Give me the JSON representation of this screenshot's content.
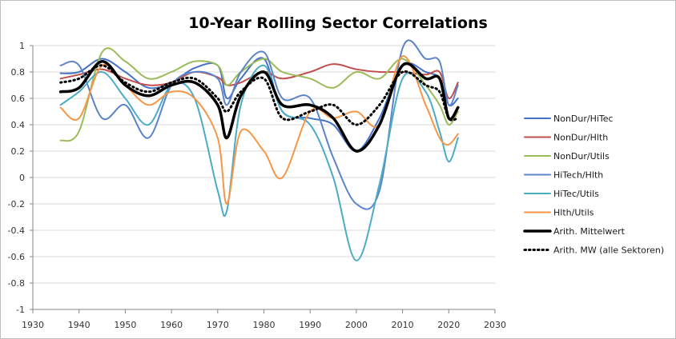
{
  "chart_data": {
    "type": "line",
    "title": "10-Year Rolling Sector Correlations",
    "xlabel": "",
    "ylabel": "",
    "xlim": [
      1930,
      2030
    ],
    "ylim": [
      -1,
      1
    ],
    "x_ticks": [
      1930,
      1940,
      1950,
      1960,
      1970,
      1980,
      1990,
      2000,
      2010,
      2020,
      2030
    ],
    "y_ticks": [
      -1,
      -0.8,
      -0.6,
      -0.4,
      -0.2,
      0,
      0.2,
      0.4,
      0.6,
      0.8,
      1
    ],
    "grid": "horizontal",
    "legend_position": "right",
    "x": [
      1936,
      1940,
      1945,
      1950,
      1955,
      1960,
      1965,
      1970,
      1972,
      1975,
      1980,
      1984,
      1990,
      1995,
      2000,
      2005,
      2010,
      2015,
      2018,
      2020,
      2022
    ],
    "series": [
      {
        "name": "NonDur/HiTec",
        "color": "#4472c4",
        "width": 2,
        "dash": "",
        "values": [
          0.79,
          0.8,
          0.9,
          0.8,
          0.68,
          0.72,
          0.83,
          0.85,
          0.6,
          0.75,
          0.9,
          0.5,
          0.45,
          0.4,
          0.2,
          0.45,
          0.85,
          0.8,
          0.75,
          0.55,
          0.6
        ]
      },
      {
        "name": "NonDur/Hlth",
        "color": "#c0504d",
        "width": 2,
        "dash": "",
        "values": [
          0.75,
          0.78,
          0.82,
          0.75,
          0.7,
          0.72,
          0.8,
          0.76,
          0.7,
          0.72,
          0.8,
          0.75,
          0.8,
          0.86,
          0.82,
          0.8,
          0.8,
          0.78,
          0.8,
          0.6,
          0.72
        ]
      },
      {
        "name": "NonDur/Utils",
        "color": "#9bbb59",
        "width": 2,
        "dash": "",
        "values": [
          0.28,
          0.35,
          0.95,
          0.88,
          0.75,
          0.8,
          0.88,
          0.85,
          0.7,
          0.8,
          0.9,
          0.8,
          0.75,
          0.68,
          0.8,
          0.75,
          0.9,
          0.7,
          0.55,
          0.4,
          0.5
        ]
      },
      {
        "name": "HiTech/Hlth",
        "color": "#5b85c8",
        "width": 2,
        "dash": "",
        "values": [
          0.85,
          0.85,
          0.45,
          0.55,
          0.3,
          0.7,
          0.8,
          0.75,
          0.55,
          0.8,
          0.95,
          0.6,
          0.6,
          0.15,
          -0.2,
          -0.1,
          0.98,
          0.9,
          0.88,
          0.55,
          0.7
        ]
      },
      {
        "name": "HiTec/Utils",
        "color": "#4bacc6",
        "width": 2,
        "dash": "",
        "values": [
          0.55,
          0.65,
          0.8,
          0.6,
          0.4,
          0.7,
          0.6,
          -0.1,
          -0.25,
          0.55,
          0.85,
          0.5,
          0.4,
          0.0,
          -0.63,
          -0.05,
          0.75,
          0.65,
          0.35,
          0.12,
          0.3
        ]
      },
      {
        "name": "Hlth/Utils",
        "color": "#f79646",
        "width": 2,
        "dash": "",
        "values": [
          0.53,
          0.45,
          0.85,
          0.7,
          0.55,
          0.65,
          0.6,
          0.3,
          -0.2,
          0.35,
          0.2,
          0.0,
          0.5,
          0.45,
          0.5,
          0.4,
          0.92,
          0.55,
          0.3,
          0.25,
          0.33
        ]
      },
      {
        "name": "Arith. Mittelwert",
        "color": "#000000",
        "width": 3.5,
        "dash": "",
        "values": [
          0.65,
          0.68,
          0.88,
          0.7,
          0.62,
          0.7,
          0.72,
          0.55,
          0.3,
          0.62,
          0.8,
          0.55,
          0.55,
          0.45,
          0.2,
          0.4,
          0.85,
          0.75,
          0.75,
          0.45,
          0.53
        ]
      },
      {
        "name": "Arith. MW (alle Sektoren)",
        "color": "#000000",
        "width": 3,
        "dash": "1.5,4",
        "values": [
          0.72,
          0.75,
          0.85,
          0.72,
          0.65,
          0.72,
          0.75,
          0.6,
          0.5,
          0.65,
          0.75,
          0.45,
          0.5,
          0.55,
          0.4,
          0.55,
          0.8,
          0.7,
          0.65,
          0.45,
          0.45
        ]
      }
    ]
  }
}
